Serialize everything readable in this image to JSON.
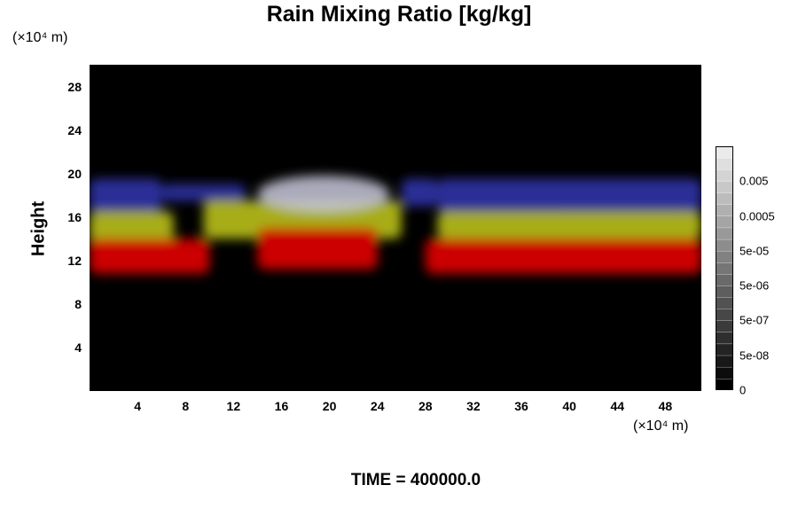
{
  "chart_data": {
    "type": "heatmap",
    "title": "Rain Mixing Ratio [kg/kg]",
    "ylabel": "Height",
    "xunit": "(×10⁴ m)",
    "yunit": "(×10⁴ m)",
    "xlim": [
      0,
      51
    ],
    "ylim": [
      0,
      30
    ],
    "x_ticks": [
      "4",
      "8",
      "12",
      "16",
      "20",
      "24",
      "28",
      "32",
      "36",
      "40",
      "44",
      "48"
    ],
    "y_ticks": [
      "4",
      "8",
      "12",
      "16",
      "20",
      "24",
      "28"
    ],
    "colorbar": {
      "levels": 21,
      "labels": [
        "0",
        "5e-08",
        "5e-07",
        "5e-06",
        "5e-05",
        "0.0005",
        "0.005"
      ]
    },
    "colors": {
      "background": "#000000",
      "low_layer": "#cc0000",
      "mid_layer": "#a7ad12",
      "upper_layer": "#2a2f96",
      "cloud_top": "#c8c8dc"
    },
    "layers": [
      {
        "color": "#2a2f96",
        "regions": [
          [
            0,
            6,
            16.5,
            19.5
          ],
          [
            6,
            13,
            17.5,
            19.0
          ],
          [
            26,
            29,
            17.0,
            19.5
          ],
          [
            29,
            51,
            16.5,
            19.5
          ]
        ]
      },
      {
        "color": "#a7ad12",
        "regions": [
          [
            0,
            7,
            13.5,
            16.5
          ],
          [
            9.5,
            26,
            14.0,
            17.5
          ],
          [
            29,
            51,
            14.0,
            16.5
          ]
        ]
      },
      {
        "color": "#cc0000",
        "regions": [
          [
            0,
            10,
            10.8,
            14.0
          ],
          [
            14,
            24,
            11.2,
            15.0
          ],
          [
            28,
            51,
            10.8,
            14.0
          ]
        ]
      }
    ],
    "cloud_top": [
      14,
      25,
      16.5,
      19.8
    ]
  },
  "footer": {
    "time_label": "TIME = 400000.0"
  }
}
